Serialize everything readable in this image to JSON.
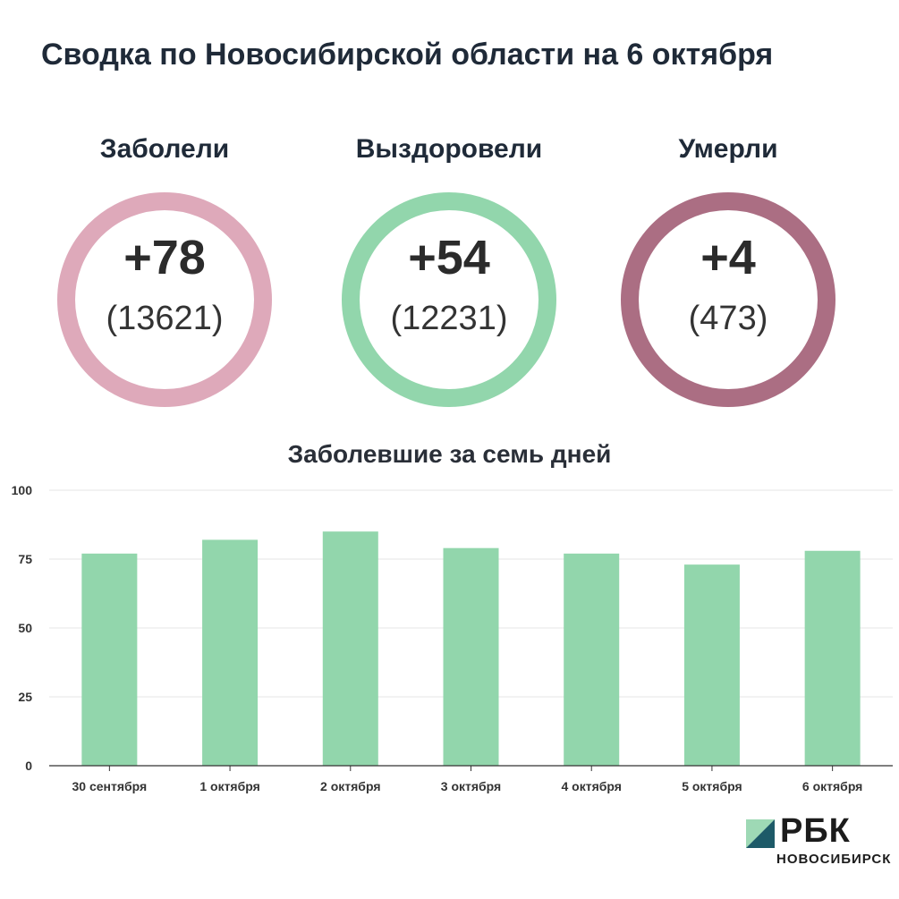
{
  "header": {
    "title": "Сводка по Новосибирской области на 6 октября"
  },
  "stats": [
    {
      "label": "Заболели",
      "value": "+78",
      "total": "(13621)",
      "color": "#dea9ba"
    },
    {
      "label": "Выздоровели",
      "value": "+54",
      "total": "(12231)",
      "color": "#92d6ac"
    },
    {
      "label": "Умерли",
      "value": "+4",
      "total": "(473)",
      "color": "#ab6e83"
    }
  ],
  "chart_data": {
    "type": "bar",
    "title": "Заболевшие за семь дней",
    "categories": [
      "30 сентября",
      "1 октября",
      "2 октября",
      "3 октября",
      "4 октября",
      "5 октября",
      "6 октября"
    ],
    "values": [
      77,
      82,
      85,
      79,
      77,
      73,
      78
    ],
    "ylim": [
      0,
      100
    ],
    "yticks": [
      0,
      25,
      50,
      75,
      100
    ],
    "grid": true,
    "bar_color": "#92d6ac"
  },
  "brand": {
    "name": "РБК",
    "sub": "НОВОСИБИРСК"
  }
}
